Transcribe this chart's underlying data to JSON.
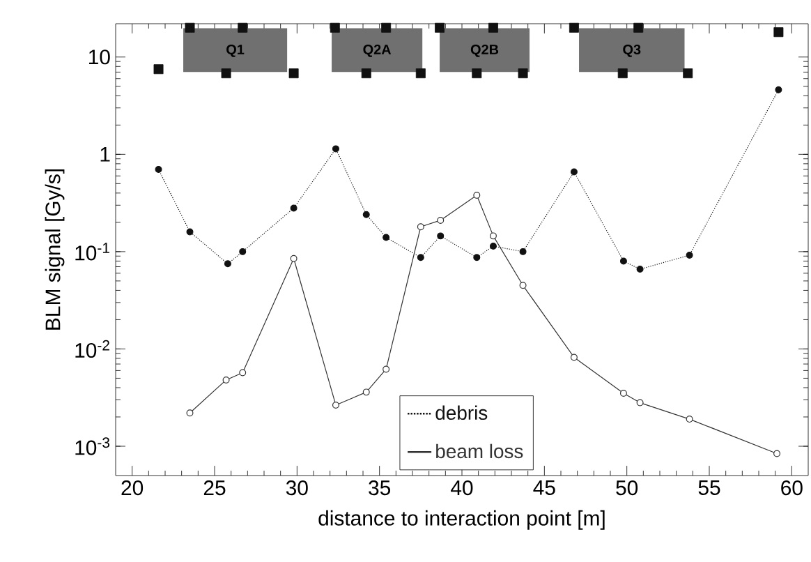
{
  "chart_data": {
    "type": "line",
    "xlabel": "distance to interaction point [m]",
    "ylabel": "BLM signal [Gy/s]",
    "log": "y",
    "xlim": [
      19,
      61
    ],
    "xticks": [
      20,
      25,
      30,
      35,
      40,
      45,
      50,
      55,
      60
    ],
    "ylim": [
      0.0005,
      22
    ],
    "yticks": [
      {
        "value": 0.001,
        "label": "10$^{-3}$"
      },
      {
        "value": 0.01,
        "label": "10$^{-2}$"
      },
      {
        "value": 0.1,
        "label": "10$^{-1}$"
      },
      1,
      10
    ],
    "grid": false,
    "legend": "bottom",
    "series": [
      {
        "name": "debris",
        "color": "#111111",
        "marker": "circle",
        "line_style": "dotted",
        "x": [
          21.6,
          23.5,
          25.8,
          26.7,
          29.8,
          32.35,
          34.2,
          35.4,
          37.5,
          38.7,
          40.9,
          41.9,
          43.7,
          46.8,
          49.8,
          50.8,
          53.8,
          59.2
        ],
        "values": [
          0.7,
          0.16,
          0.075,
          0.1,
          0.28,
          1.14,
          0.24,
          0.14,
          0.087,
          0.145,
          0.087,
          0.114,
          0.1,
          0.66,
          0.08,
          0.066,
          0.092,
          4.6
        ]
      },
      {
        "name": "beam loss",
        "color": "#333333",
        "marker": "circle",
        "line_style": "solid",
        "x": [
          23.5,
          25.7,
          26.7,
          29.8,
          32.35,
          34.2,
          35.4,
          37.5,
          38.7,
          40.9,
          41.9,
          43.7,
          46.8,
          49.8,
          50.8,
          53.8,
          59.1
        ],
        "values": [
          0.0022,
          0.0048,
          0.0057,
          0.085,
          0.00265,
          0.0036,
          0.0062,
          0.18,
          0.21,
          0.38,
          0.145,
          0.045,
          0.0082,
          0.0035,
          0.0028,
          0.0019,
          0.00084
        ]
      },
      {
        "type": "scatter",
        "color": "#111111",
        "marker": "square",
        "x": [
          21.6,
          23.5,
          26.7,
          32.3,
          35.4,
          38.65,
          41.9,
          46.8,
          50.7,
          59.2,
          25.7,
          29.8,
          34.2,
          37.5,
          40.9,
          43.7,
          49.75,
          53.7
        ],
        "values": [
          7.5,
          20,
          20,
          20,
          20,
          20,
          20,
          20,
          20,
          18,
          6.8,
          6.8,
          6.8,
          6.8,
          6.8,
          6.8,
          6.8,
          6.8
        ]
      }
    ],
    "bands": [
      {
        "axis": "x",
        "from": 23.1,
        "to": 29.4,
        "label": "Q1",
        "color": "#707070"
      },
      {
        "axis": "x",
        "from": 32.1,
        "to": 37.6,
        "label": "Q2A",
        "color": "#707070"
      },
      {
        "axis": "x",
        "from": 38.65,
        "to": 44.1,
        "label": "Q2B",
        "color": "#707070"
      },
      {
        "axis": "x",
        "from": 47.1,
        "to": 53.5,
        "label": "Q3",
        "color": "#707070"
      }
    ]
  }
}
